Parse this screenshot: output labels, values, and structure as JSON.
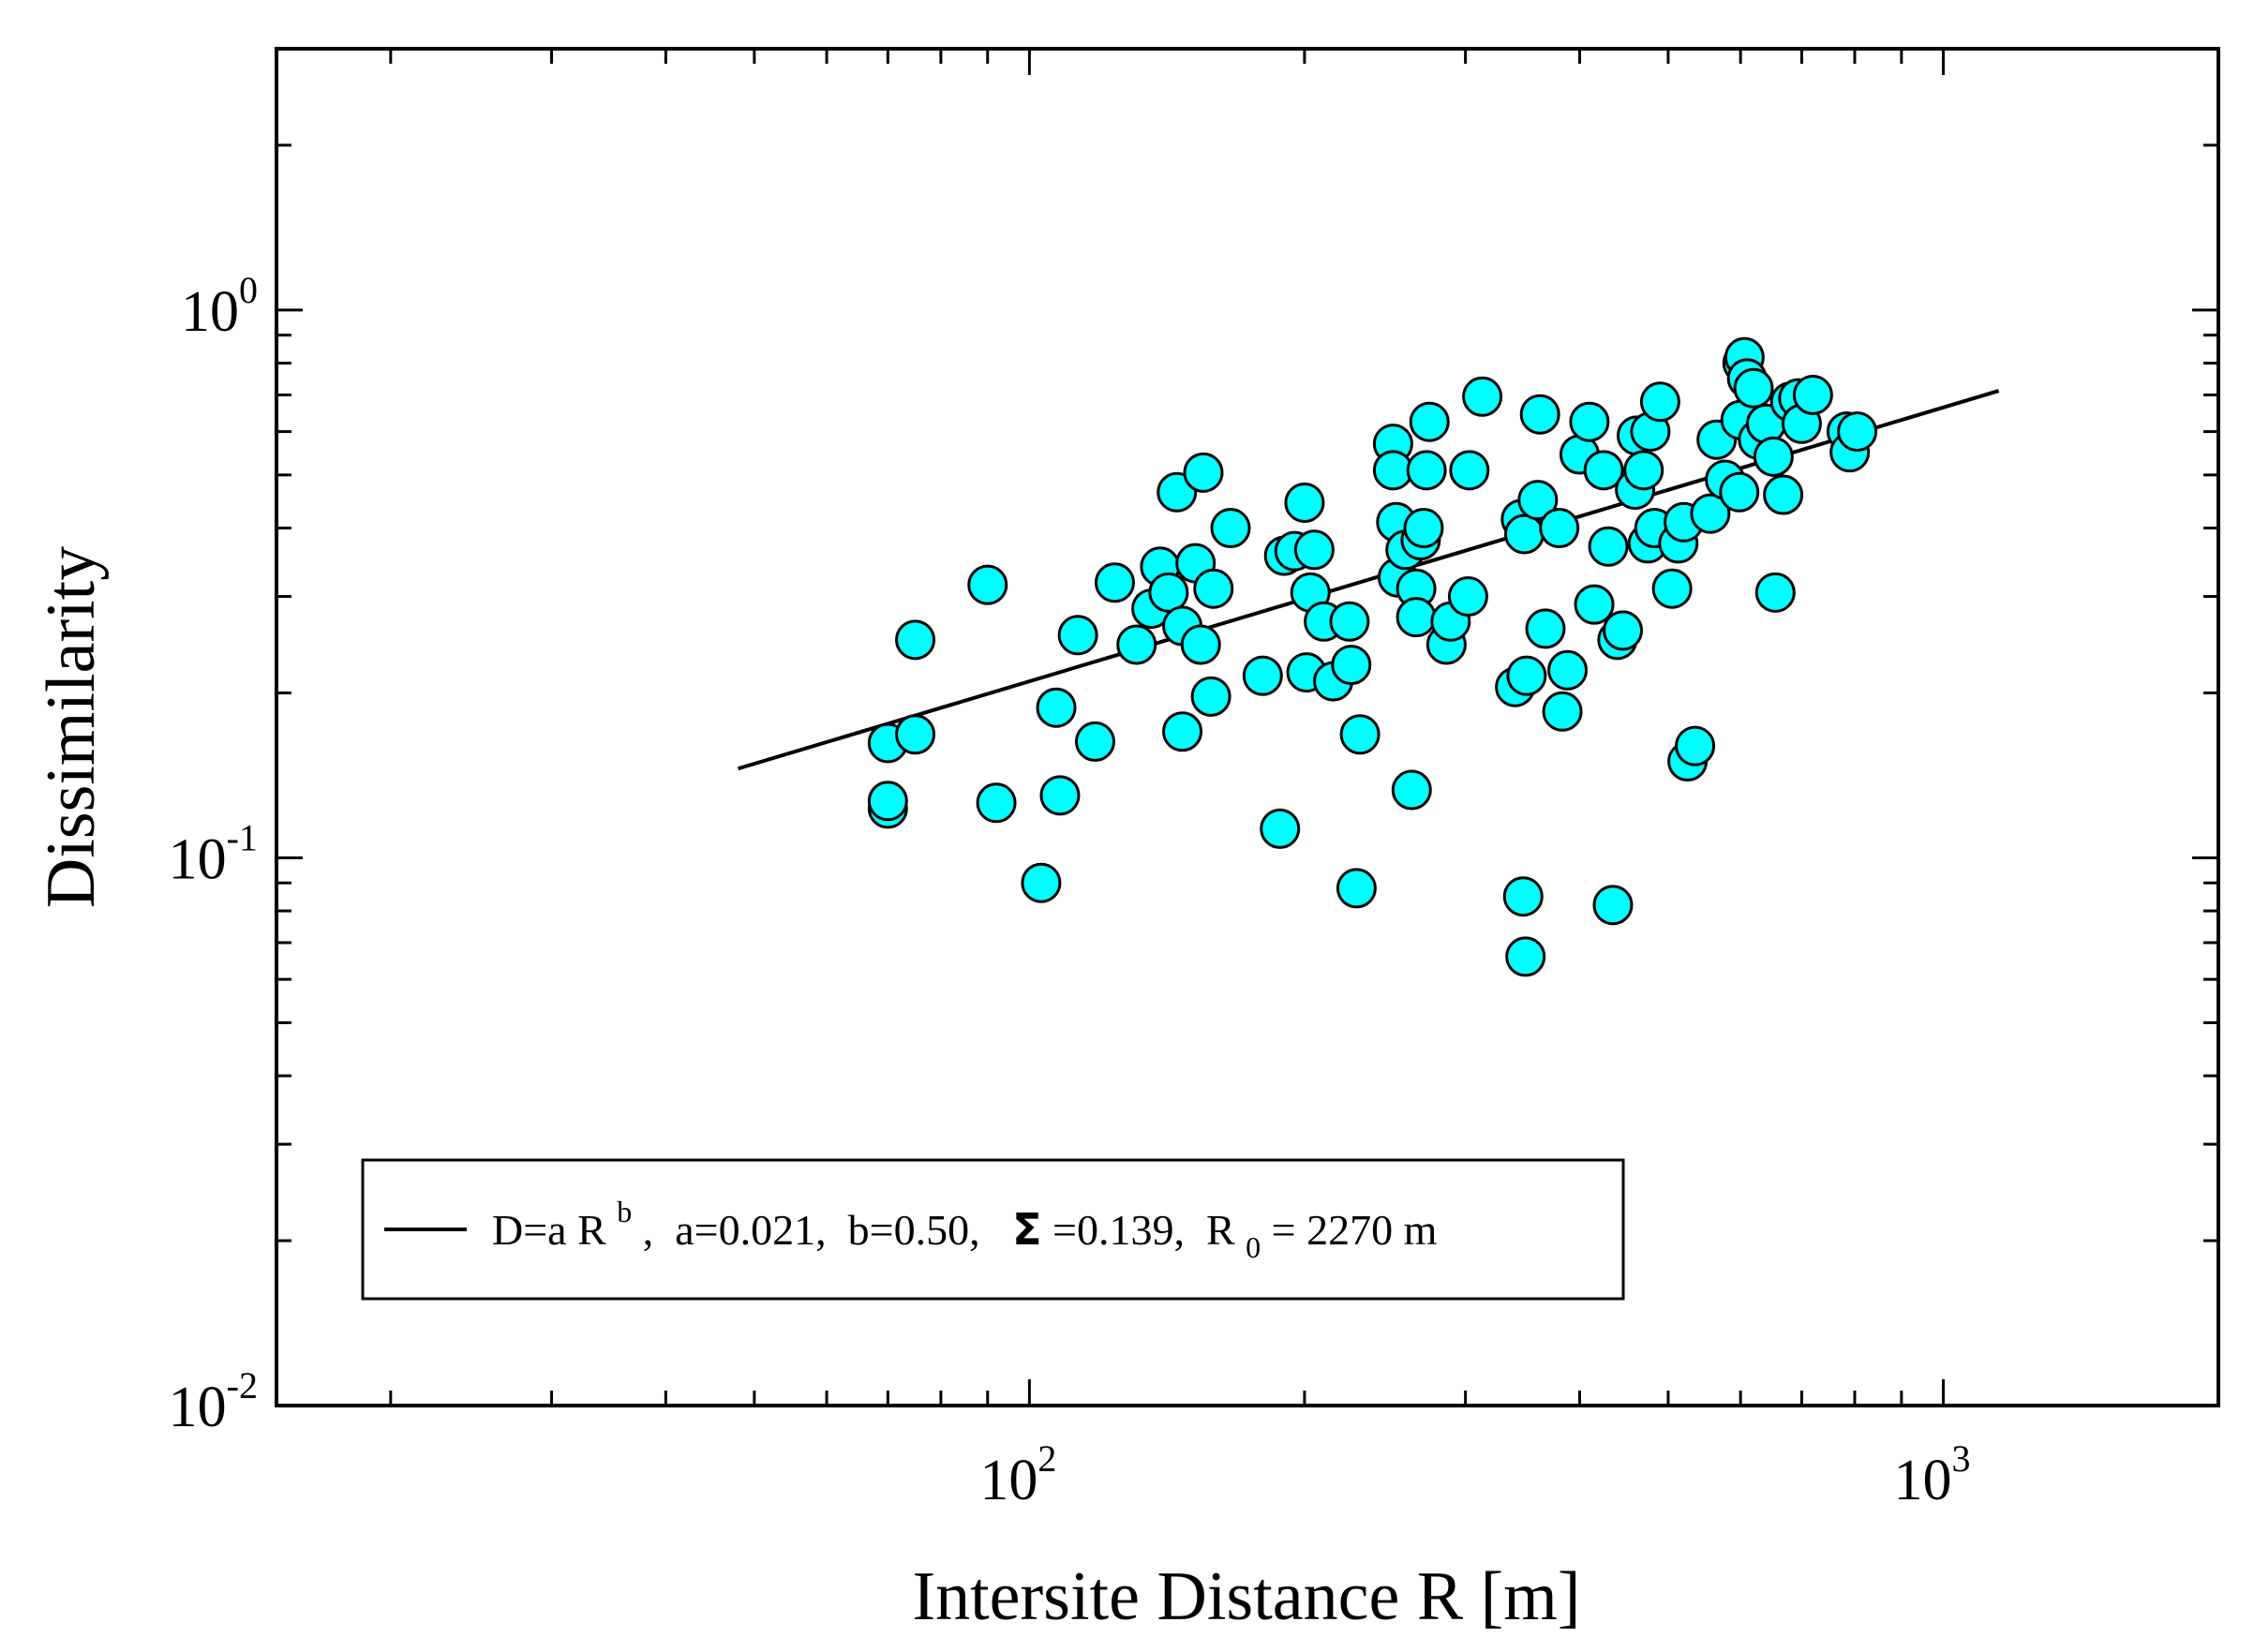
{
  "chart_data": {
    "type": "scatter",
    "title": "",
    "xlabel": "Intersite Distance R [m]",
    "ylabel": "Dissimilarity",
    "xscale": "log",
    "yscale": "log",
    "xlim": [
      15,
      2000
    ],
    "ylim": [
      0.01,
      3.0
    ],
    "x_ticks": [
      {
        "base": "10",
        "exp": "2",
        "value": 100
      },
      {
        "base": "10",
        "exp": "3",
        "value": 1000
      }
    ],
    "y_ticks": [
      {
        "base": "10",
        "exp": "-2",
        "value": 0.01
      },
      {
        "base": "10",
        "exp": "-1",
        "value": 0.1
      },
      {
        "base": "10",
        "exp": "0",
        "value": 1
      }
    ],
    "marker_color": "#00ffff",
    "marker_edge": "#000000",
    "fit": {
      "a": 0.021,
      "b": 0.5,
      "x_range": [
        48,
        1150
      ]
    },
    "legend": {
      "position": "bottom-left",
      "parts": {
        "p1": "D=a R",
        "p1_sup": "b",
        "p2": ",  a=0.021,  b=0.50,  ",
        "sigma": "Σ",
        "p3": "=0.139,  R",
        "p3_sub": "0",
        "p4": "= 2270 m"
      }
    },
    "points": [
      [
        70,
        0.123
      ],
      [
        70,
        0.127
      ],
      [
        70,
        0.162
      ],
      [
        75,
        0.168
      ],
      [
        75,
        0.25
      ],
      [
        90,
        0.315
      ],
      [
        92,
        0.126
      ],
      [
        103,
        0.09
      ],
      [
        107,
        0.188
      ],
      [
        108,
        0.13
      ],
      [
        113,
        0.255
      ],
      [
        118,
        0.163
      ],
      [
        124,
        0.318
      ],
      [
        131,
        0.245
      ],
      [
        136,
        0.285
      ],
      [
        139,
        0.34
      ],
      [
        142,
        0.305
      ],
      [
        145,
        0.465
      ],
      [
        147,
        0.265
      ],
      [
        147,
        0.17
      ],
      [
        152,
        0.345
      ],
      [
        154,
        0.245
      ],
      [
        155,
        0.505
      ],
      [
        158,
        0.197
      ],
      [
        159,
        0.31
      ],
      [
        166,
        0.4
      ],
      [
        180,
        0.215
      ],
      [
        188,
        0.113
      ],
      [
        190,
        0.356
      ],
      [
        195,
        0.363
      ],
      [
        200,
        0.445
      ],
      [
        201,
        0.218
      ],
      [
        203,
        0.305
      ],
      [
        205,
        0.365
      ],
      [
        210,
        0.27
      ],
      [
        215,
        0.21
      ],
      [
        224,
        0.27
      ],
      [
        225,
        0.225
      ],
      [
        228,
        0.088
      ],
      [
        230,
        0.168
      ],
      [
        250,
        0.57
      ],
      [
        250,
        0.51
      ],
      [
        252,
        0.41
      ],
      [
        253,
        0.325
      ],
      [
        258,
        0.365
      ],
      [
        262,
        0.133
      ],
      [
        265,
        0.31
      ],
      [
        265,
        0.275
      ],
      [
        268,
        0.38
      ],
      [
        270,
        0.4
      ],
      [
        272,
        0.51
      ],
      [
        274,
        0.625
      ],
      [
        286,
        0.245
      ],
      [
        289,
        0.27
      ],
      [
        302,
        0.3
      ],
      [
        303,
        0.51
      ],
      [
        313,
        0.695
      ],
      [
        340,
        0.205
      ],
      [
        345,
        0.415
      ],
      [
        347,
        0.085
      ],
      [
        348,
        0.39
      ],
      [
        349,
        0.066
      ],
      [
        350,
        0.215
      ],
      [
        360,
        0.45
      ],
      [
        362,
        0.645
      ],
      [
        367,
        0.262
      ],
      [
        380,
        0.4
      ],
      [
        383,
        0.185
      ],
      [
        388,
        0.22
      ],
      [
        400,
        0.545
      ],
      [
        410,
        0.625
      ],
      [
        415,
        0.29
      ],
      [
        425,
        0.51
      ],
      [
        430,
        0.37
      ],
      [
        435,
        0.082
      ],
      [
        440,
        0.25
      ],
      [
        446,
        0.26
      ],
      [
        460,
        0.47
      ],
      [
        462,
        0.59
      ],
      [
        470,
        0.51
      ],
      [
        475,
        0.375
      ],
      [
        478,
        0.6
      ],
      [
        483,
        0.4
      ],
      [
        490,
        0.68
      ],
      [
        505,
        0.31
      ],
      [
        513,
        0.375
      ],
      [
        520,
        0.41
      ],
      [
        525,
        0.15
      ],
      [
        535,
        0.16
      ],
      [
        556,
        0.425
      ],
      [
        565,
        0.58
      ],
      [
        577,
        0.49
      ],
      [
        598,
        0.465
      ],
      [
        600,
        0.63
      ],
      [
        603,
        0.8
      ],
      [
        606,
        0.82
      ],
      [
        610,
        0.75
      ],
      [
        620,
        0.72
      ],
      [
        627,
        0.58
      ],
      [
        640,
        0.62
      ],
      [
        652,
        0.54
      ],
      [
        655,
        0.305
      ],
      [
        668,
        0.46
      ],
      [
        680,
        0.68
      ],
      [
        694,
        0.69
      ],
      [
        700,
        0.62
      ],
      [
        720,
        0.7
      ],
      [
        784,
        0.6
      ],
      [
        790,
        0.55
      ],
      [
        805,
        0.6
      ]
    ]
  }
}
